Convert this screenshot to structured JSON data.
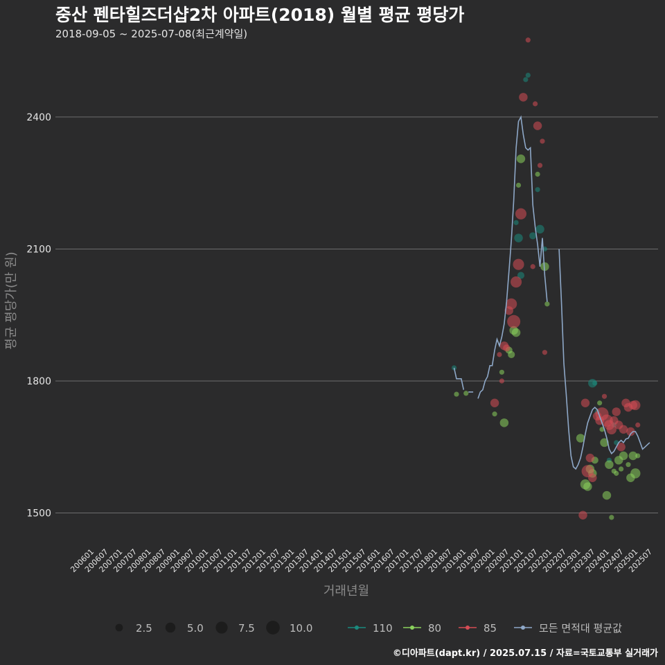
{
  "chart_data": {
    "type": "scatter",
    "title": "중산 펜타힐즈더샵2차 아파트(2018) 월별 평균 평당가",
    "subtitle": "2018-09-05 ~ 2025-07-08(최근계약일)",
    "xlabel": "거래년월",
    "ylabel": "평균 평당가(만 원)",
    "caption": "©디아파트(dapt.kr) / 2025.07.15 / 자료=국토교통부 실거래가",
    "ylim": [
      1430,
      2540
    ],
    "yticks": [
      1500,
      1800,
      2100,
      2400
    ],
    "x_categories": [
      "200601",
      "200607",
      "200701",
      "200707",
      "200801",
      "200807",
      "200901",
      "200907",
      "201001",
      "201007",
      "201101",
      "201107",
      "201201",
      "201207",
      "201301",
      "201307",
      "201401",
      "201407",
      "201501",
      "201507",
      "201601",
      "201607",
      "201701",
      "201707",
      "201801",
      "201807",
      "201901",
      "201907",
      "202001",
      "202007",
      "202101",
      "202107",
      "202201",
      "202207",
      "202301",
      "202307",
      "202401",
      "202407",
      "202501",
      "202507"
    ],
    "x_start": "200601",
    "size_legend": [
      2.5,
      5.0,
      7.5,
      10.0
    ],
    "grid": true,
    "legend_position": "bottom",
    "series": [
      {
        "name": "110",
        "color": "#1b8a7e",
        "points": [
          [
            "201809",
            1830,
            1
          ],
          [
            "202011",
            2160,
            1
          ],
          [
            "202012",
            2125,
            3
          ],
          [
            "202101",
            2040,
            2
          ],
          [
            "202103",
            2485,
            1
          ],
          [
            "202104",
            2495,
            1
          ],
          [
            "202106",
            2130,
            2
          ],
          [
            "202108",
            2235,
            1
          ],
          [
            "202109",
            2145,
            3
          ],
          [
            "202111",
            2100,
            1
          ],
          [
            "202307",
            1795,
            3
          ],
          [
            "202308",
            1795,
            1
          ],
          [
            "202309",
            1730,
            1
          ],
          [
            "202402",
            1620,
            1
          ],
          [
            "202404",
            1700,
            1
          ],
          [
            "202405",
            1660,
            1
          ]
        ]
      },
      {
        "name": "80",
        "color": "#8ad15c",
        "points": [
          [
            "201810",
            1770,
            1
          ],
          [
            "201902",
            1772,
            1
          ],
          [
            "202002",
            1725,
            1
          ],
          [
            "202005",
            1820,
            1
          ],
          [
            "202006",
            1705,
            3
          ],
          [
            "202008",
            1870,
            2
          ],
          [
            "202009",
            1860,
            2
          ],
          [
            "202010",
            1915,
            3
          ],
          [
            "202011",
            1910,
            3
          ],
          [
            "202012",
            2245,
            1
          ],
          [
            "202101",
            2305,
            3
          ],
          [
            "202108",
            2270,
            1
          ],
          [
            "202111",
            2060,
            3
          ],
          [
            "202112",
            1975,
            1
          ],
          [
            "202302",
            1670,
            3
          ],
          [
            "202304",
            1565,
            4
          ],
          [
            "202305",
            1560,
            3
          ],
          [
            "202306",
            1600,
            3
          ],
          [
            "202307",
            1590,
            3
          ],
          [
            "202308",
            1620,
            2
          ],
          [
            "202310",
            1750,
            1
          ],
          [
            "202311",
            1690,
            1
          ],
          [
            "202312",
            1660,
            3
          ],
          [
            "202401",
            1540,
            3
          ],
          [
            "202402",
            1610,
            3
          ],
          [
            "202403",
            1490,
            1
          ],
          [
            "202404",
            1595,
            1
          ],
          [
            "202405",
            1590,
            1
          ],
          [
            "202406",
            1620,
            3
          ],
          [
            "202407",
            1600,
            1
          ],
          [
            "202408",
            1630,
            3
          ],
          [
            "202410",
            1610,
            1
          ],
          [
            "202411",
            1580,
            3
          ],
          [
            "202412",
            1630,
            3
          ],
          [
            "202501",
            1590,
            4
          ],
          [
            "202502",
            1630,
            1
          ]
        ]
      },
      {
        "name": "85",
        "color": "#d64c55",
        "points": [
          [
            "202002",
            1750,
            3
          ],
          [
            "202004",
            1860,
            1
          ],
          [
            "202005",
            1800,
            1
          ],
          [
            "202006",
            1880,
            3
          ],
          [
            "202007",
            1875,
            2
          ],
          [
            "202008",
            1960,
            3
          ],
          [
            "202009",
            1975,
            5
          ],
          [
            "202010",
            1935,
            7
          ],
          [
            "202011",
            2025,
            5
          ],
          [
            "202012",
            2065,
            5
          ],
          [
            "202101",
            2180,
            5
          ],
          [
            "202102",
            2445,
            3
          ],
          [
            "202104",
            2575,
            1
          ],
          [
            "202106",
            2060,
            1
          ],
          [
            "202107",
            2430,
            1
          ],
          [
            "202108",
            2380,
            3
          ],
          [
            "202109",
            2290,
            1
          ],
          [
            "202110",
            2345,
            1
          ],
          [
            "202111",
            1865,
            1
          ],
          [
            "202303",
            1495,
            3
          ],
          [
            "202304",
            1750,
            3
          ],
          [
            "202305",
            1595,
            6
          ],
          [
            "202306",
            1625,
            3
          ],
          [
            "202307",
            1580,
            3
          ],
          [
            "202309",
            1720,
            3
          ],
          [
            "202310",
            1710,
            3
          ],
          [
            "202311",
            1725,
            7
          ],
          [
            "202312",
            1765,
            1
          ],
          [
            "202401",
            1710,
            6
          ],
          [
            "202402",
            1700,
            4
          ],
          [
            "202403",
            1690,
            4
          ],
          [
            "202404",
            1710,
            3
          ],
          [
            "202405",
            1730,
            3
          ],
          [
            "202406",
            1700,
            3
          ],
          [
            "202407",
            1650,
            3
          ],
          [
            "202408",
            1690,
            3
          ],
          [
            "202409",
            1750,
            3
          ],
          [
            "202410",
            1740,
            3
          ],
          [
            "202411",
            1685,
            3
          ],
          [
            "202412",
            1745,
            3
          ],
          [
            "202501",
            1745,
            4
          ],
          [
            "202502",
            1700,
            1
          ]
        ]
      }
    ],
    "average_line": {
      "name": "모든 면적대 평균값",
      "color": "#8ea8c8",
      "segments": [
        [
          [
            "201809",
            1830
          ],
          [
            "201810",
            1805
          ],
          [
            "201811",
            1805
          ],
          [
            "201812",
            1805
          ],
          [
            "201901",
            1780
          ]
        ],
        [
          [
            "201903",
            1775
          ],
          [
            "201904",
            1775
          ],
          [
            "201905",
            1775
          ]
        ],
        [
          [
            "201907",
            1760
          ],
          [
            "201908",
            1775
          ],
          [
            "201909",
            1780
          ],
          [
            "201910",
            1800
          ],
          [
            "201911",
            1810
          ],
          [
            "201912",
            1835
          ],
          [
            "202001",
            1835
          ],
          [
            "202002",
            1870
          ],
          [
            "202003",
            1895
          ],
          [
            "202004",
            1880
          ],
          [
            "202005",
            1900
          ],
          [
            "202006",
            1930
          ],
          [
            "202007",
            1980
          ],
          [
            "202008",
            2050
          ],
          [
            "202009",
            2120
          ],
          [
            "202010",
            2210
          ],
          [
            "202011",
            2330
          ],
          [
            "202012",
            2390
          ],
          [
            "202101",
            2400
          ],
          [
            "202102",
            2360
          ],
          [
            "202103",
            2330
          ],
          [
            "202104",
            2325
          ],
          [
            "202105",
            2330
          ],
          [
            "202106",
            2200
          ],
          [
            "202107",
            2150
          ],
          [
            "202108",
            2110
          ],
          [
            "202109",
            2060
          ],
          [
            "202110",
            2125
          ],
          [
            "202111",
            2040
          ],
          [
            "202112",
            1980
          ]
        ],
        [
          [
            "202205",
            2100
          ],
          [
            "202206",
            1980
          ],
          [
            "202207",
            1840
          ],
          [
            "202208",
            1770
          ],
          [
            "202209",
            1690
          ],
          [
            "202210",
            1630
          ],
          [
            "202211",
            1605
          ],
          [
            "202212",
            1600
          ],
          [
            "202301",
            1610
          ],
          [
            "202302",
            1625
          ],
          [
            "202303",
            1650
          ],
          [
            "202304",
            1680
          ],
          [
            "202305",
            1705
          ],
          [
            "202306",
            1720
          ],
          [
            "202307",
            1735
          ],
          [
            "202308",
            1740
          ],
          [
            "202309",
            1735
          ],
          [
            "202310",
            1720
          ],
          [
            "202311",
            1705
          ],
          [
            "202312",
            1690
          ],
          [
            "202401",
            1670
          ],
          [
            "202402",
            1645
          ],
          [
            "202403",
            1635
          ],
          [
            "202404",
            1640
          ],
          [
            "202405",
            1650
          ],
          [
            "202406",
            1660
          ],
          [
            "202407",
            1665
          ],
          [
            "202408",
            1660
          ],
          [
            "202409",
            1668
          ],
          [
            "202410",
            1670
          ],
          [
            "202411",
            1680
          ],
          [
            "202412",
            1685
          ],
          [
            "202501",
            1685
          ],
          [
            "202502",
            1675
          ],
          [
            "202503",
            1660
          ],
          [
            "202504",
            1645
          ],
          [
            "202505",
            1650
          ],
          [
            "202506",
            1655
          ],
          [
            "202507",
            1660
          ]
        ]
      ]
    }
  }
}
